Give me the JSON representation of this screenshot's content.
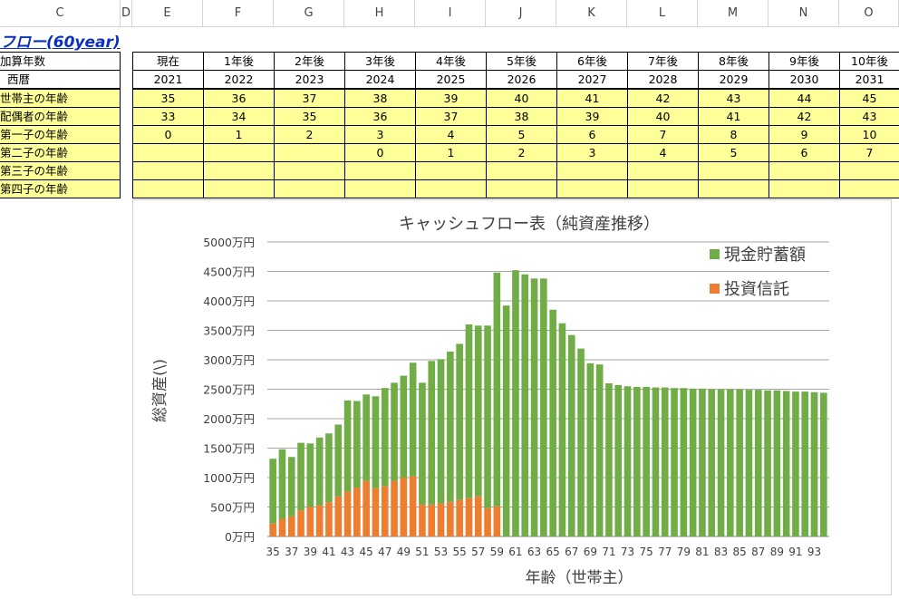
{
  "columns": [
    "C",
    "D",
    "E",
    "F",
    "G",
    "H",
    "I",
    "J",
    "K",
    "L",
    "M",
    "N",
    "O"
  ],
  "sheet_title": "フロー(60year)",
  "row_labels": [
    "加算年数",
    "西暦",
    "世帯主の年齢",
    "配偶者の年齢",
    "第一子の年齢",
    "第二子の年齢",
    "第三子の年齢",
    "第四子の年齢"
  ],
  "table": {
    "offsets": [
      "現在",
      "1年後",
      "2年後",
      "3年後",
      "4年後",
      "5年後",
      "6年後",
      "7年後",
      "8年後",
      "9年後",
      "10年後"
    ],
    "years": [
      "2021",
      "2022",
      "2023",
      "2024",
      "2025",
      "2026",
      "2027",
      "2028",
      "2029",
      "2030",
      "2031"
    ],
    "head_age": [
      "35",
      "36",
      "37",
      "38",
      "39",
      "40",
      "41",
      "42",
      "43",
      "44",
      "45"
    ],
    "spouse_age": [
      "33",
      "34",
      "35",
      "36",
      "37",
      "38",
      "39",
      "40",
      "41",
      "42",
      "43"
    ],
    "child1_age": [
      "0",
      "1",
      "2",
      "3",
      "4",
      "5",
      "6",
      "7",
      "8",
      "9",
      "10"
    ],
    "child2_age": [
      "",
      "",
      "",
      "0",
      "1",
      "2",
      "3",
      "4",
      "5",
      "6",
      "7"
    ],
    "child3_age": [
      "",
      "",
      "",
      "",
      "",
      "",
      "",
      "",
      "",
      "",
      ""
    ],
    "child4_age": [
      "",
      "",
      "",
      "",
      "",
      "",
      "",
      "",
      "",
      "",
      ""
    ]
  },
  "chart_data": {
    "type": "bar",
    "stacked": true,
    "title": "キャッシュフロー表（純資産推移）",
    "xlabel": "年齢（世帯主）",
    "ylabel": "総資産(\\)",
    "ylim": [
      0,
      5000
    ],
    "y_ticks": [
      "0万円",
      "500万円",
      "1000万円",
      "1500万円",
      "2000万円",
      "2500万円",
      "3000万円",
      "3500万円",
      "4000万円",
      "4500万円",
      "5000万円"
    ],
    "categories": [
      35,
      36,
      37,
      38,
      39,
      40,
      41,
      42,
      43,
      44,
      45,
      46,
      47,
      48,
      49,
      50,
      51,
      52,
      53,
      54,
      55,
      56,
      57,
      58,
      59,
      60,
      61,
      62,
      63,
      64,
      65,
      66,
      67,
      68,
      69,
      70,
      71,
      72,
      73,
      74,
      75,
      76,
      77,
      78,
      79,
      80,
      81,
      82,
      83,
      84,
      85,
      86,
      87,
      88,
      89,
      90,
      91,
      92,
      93,
      94
    ],
    "x_tick_labels": [
      "35",
      "37",
      "39",
      "41",
      "43",
      "45",
      "47",
      "49",
      "51",
      "53",
      "55",
      "57",
      "59",
      "61",
      "63",
      "65",
      "67",
      "69",
      "71",
      "73",
      "75",
      "77",
      "79",
      "81",
      "83",
      "85",
      "87",
      "89",
      "91",
      "93"
    ],
    "grid": true,
    "legend_position": "top-right",
    "series": [
      {
        "name": "現金貯蓄額",
        "color": "#70ad47",
        "values": [
          1100,
          1180,
          1010,
          1150,
          1080,
          1150,
          1170,
          1220,
          1550,
          1470,
          1470,
          1560,
          1670,
          1670,
          1730,
          1930,
          2070,
          2440,
          2450,
          2550,
          2650,
          2950,
          2900,
          3100,
          3970,
          3920,
          4520,
          4450,
          4380,
          4380,
          3850,
          3620,
          3420,
          3190,
          2940,
          2920,
          2600,
          2570,
          2550,
          2540,
          2540,
          2530,
          2530,
          2520,
          2520,
          2510,
          2510,
          2500,
          2500,
          2500,
          2500,
          2490,
          2490,
          2480,
          2480,
          2470,
          2460,
          2460,
          2450,
          2440
        ]
      },
      {
        "name": "投資信託",
        "color": "#ed7d31",
        "values": [
          220,
          300,
          340,
          440,
          500,
          530,
          580,
          680,
          760,
          830,
          940,
          820,
          850,
          940,
          1000,
          1020,
          540,
          540,
          560,
          590,
          620,
          650,
          680,
          480,
          510,
          0,
          0,
          0,
          0,
          0,
          0,
          0,
          0,
          0,
          0,
          0,
          0,
          0,
          0,
          0,
          0,
          0,
          0,
          0,
          0,
          0,
          0,
          0,
          0,
          0,
          0,
          0,
          0,
          0,
          0,
          0,
          0,
          0,
          0,
          0
        ]
      }
    ]
  }
}
